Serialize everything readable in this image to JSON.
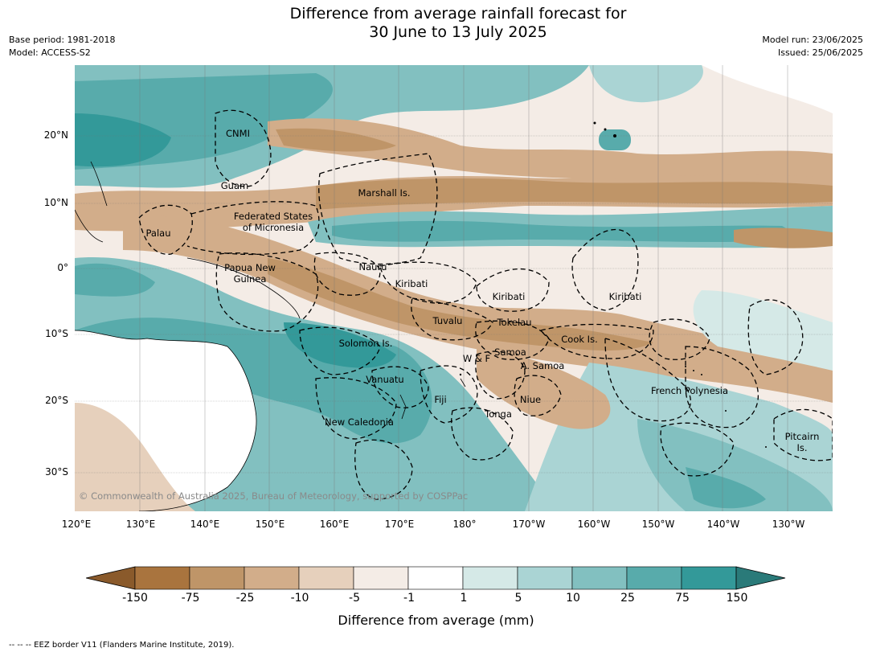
{
  "title": {
    "line1": "Difference from average rainfall forecast for",
    "line2": "30 June to 13 July 2025"
  },
  "meta": {
    "base_period": "Base period: 1981-2018",
    "model": "Model: ACCESS-S2",
    "model_run": "Model run: 23/06/2025",
    "issued": "Issued: 25/06/2025"
  },
  "map": {
    "lat_ticks": [
      "20°N",
      "10°N",
      "0°",
      "10°S",
      "20°S",
      "30°S"
    ],
    "lon_ticks": [
      "120°E",
      "130°E",
      "140°E",
      "150°E",
      "160°E",
      "170°E",
      "180°",
      "170°W",
      "160°W",
      "150°W",
      "140°W",
      "130°W"
    ],
    "places": [
      "CNMI",
      "Guam",
      "Marshall Is.",
      "Federated States\nof Micronesia",
      "Palau",
      "Papua New\nGuinea",
      "Nauru",
      "Kiribati",
      "Kiribati",
      "Kiribati",
      "Tuvalu",
      "Tokelau",
      "Cook Is.",
      "Solomon Is.",
      "W & F",
      "Samoa",
      "A. Samoa",
      "Vanuatu",
      "Fiji",
      "Niue",
      "French Polynesia",
      "Tonga",
      "New Caledonia",
      "Pitcairn\nIs."
    ],
    "copyright": "© Commonwealth of Australia 2025, Bureau of Meteorology, supported by COSPPac"
  },
  "colorbar": {
    "colors": [
      "#8a5a2b",
      "#a9743e",
      "#bf9568",
      "#d2ad8a",
      "#e6d0bc",
      "#f4ece6",
      "#ffffff",
      "#d5e9e7",
      "#aad4d4",
      "#82c0c0",
      "#58abab",
      "#339999",
      "#2a7a79"
    ],
    "tick_labels": [
      "-150",
      "-75",
      "-25",
      "-10",
      "-5",
      "-1",
      "1",
      "5",
      "10",
      "25",
      "75",
      "150"
    ],
    "label": "Difference from average (mm)"
  },
  "footer": "--  --  -- EEZ border V11 (Flanders Marine Institute, 2019)."
}
